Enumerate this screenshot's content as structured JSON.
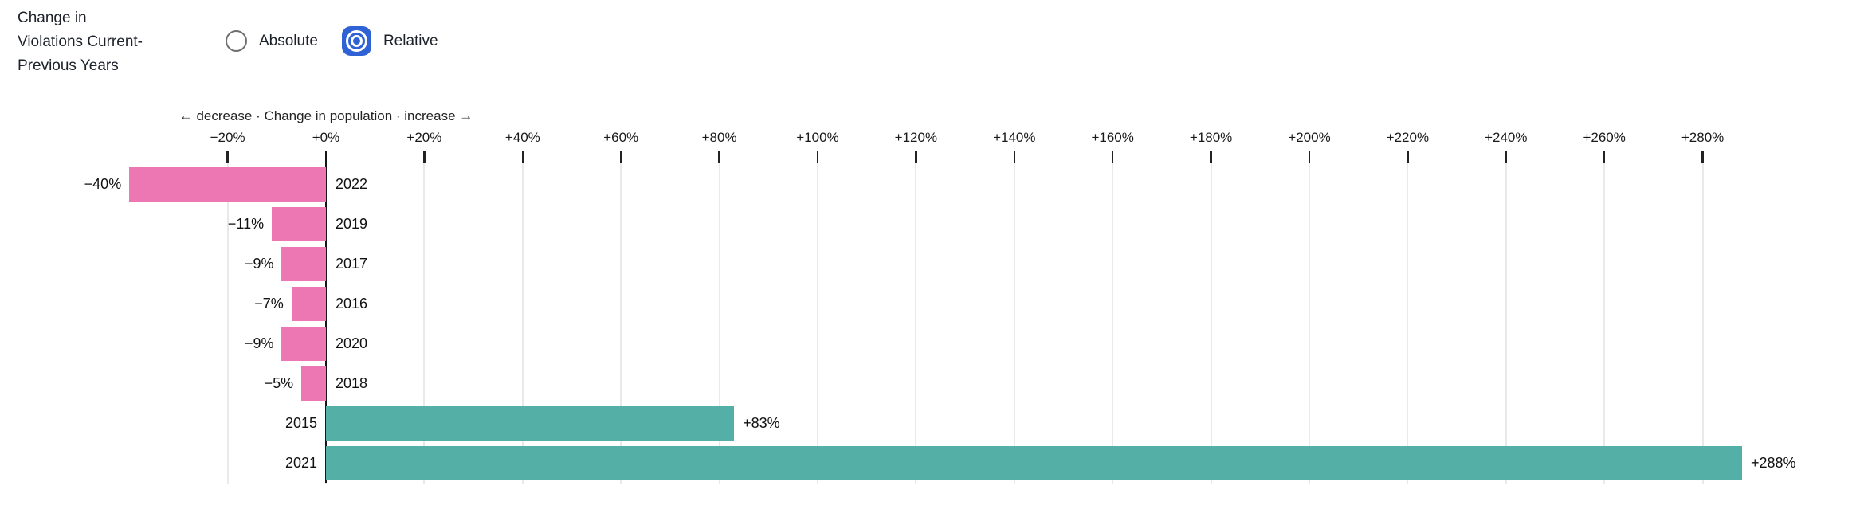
{
  "header": {
    "title": "Change in Violations Current-Previous Years",
    "title_lines": [
      "Change in",
      "Violations Current-",
      "Previous Years"
    ],
    "radios": [
      {
        "label": "Absolute",
        "selected": false
      },
      {
        "label": "Relative",
        "selected": true
      }
    ]
  },
  "colors": {
    "negative_bar": "#ec77b3",
    "positive_bar": "#54afa7",
    "radio_blue": "#2f63d5",
    "gridline": "#e9e9e9",
    "zero_line": "#161616"
  },
  "chart_data": {
    "type": "bar",
    "orientation": "horizontal",
    "axis_label": "← decrease · Change in population · increase →",
    "xlabel": "Change in population",
    "x_ticks": [
      {
        "value": -20,
        "label": "−20%"
      },
      {
        "value": 0,
        "label": "+0%"
      },
      {
        "value": 20,
        "label": "+20%"
      },
      {
        "value": 40,
        "label": "+40%"
      },
      {
        "value": 60,
        "label": "+60%"
      },
      {
        "value": 80,
        "label": "+80%"
      },
      {
        "value": 100,
        "label": "+100%"
      },
      {
        "value": 120,
        "label": "+120%"
      },
      {
        "value": 140,
        "label": "+140%"
      },
      {
        "value": 160,
        "label": "+160%"
      },
      {
        "value": 180,
        "label": "+180%"
      },
      {
        "value": 200,
        "label": "+200%"
      },
      {
        "value": 220,
        "label": "+220%"
      },
      {
        "value": 240,
        "label": "+240%"
      },
      {
        "value": 260,
        "label": "+260%"
      },
      {
        "value": 280,
        "label": "+280%"
      }
    ],
    "xlim": [
      -45,
      312
    ],
    "grid": true,
    "bars": [
      {
        "year": "2022",
        "value": -40,
        "label": "−40%"
      },
      {
        "year": "2019",
        "value": -11,
        "label": "−11%"
      },
      {
        "year": "2017",
        "value": -9,
        "label": "−9%"
      },
      {
        "year": "2016",
        "value": -7,
        "label": "−7%"
      },
      {
        "year": "2020",
        "value": -9,
        "label": "−9%"
      },
      {
        "year": "2018",
        "value": -5,
        "label": "−5%"
      },
      {
        "year": "2015",
        "value": 83,
        "label": "+83%"
      },
      {
        "year": "2021",
        "value": 288,
        "label": "+288%"
      }
    ]
  }
}
